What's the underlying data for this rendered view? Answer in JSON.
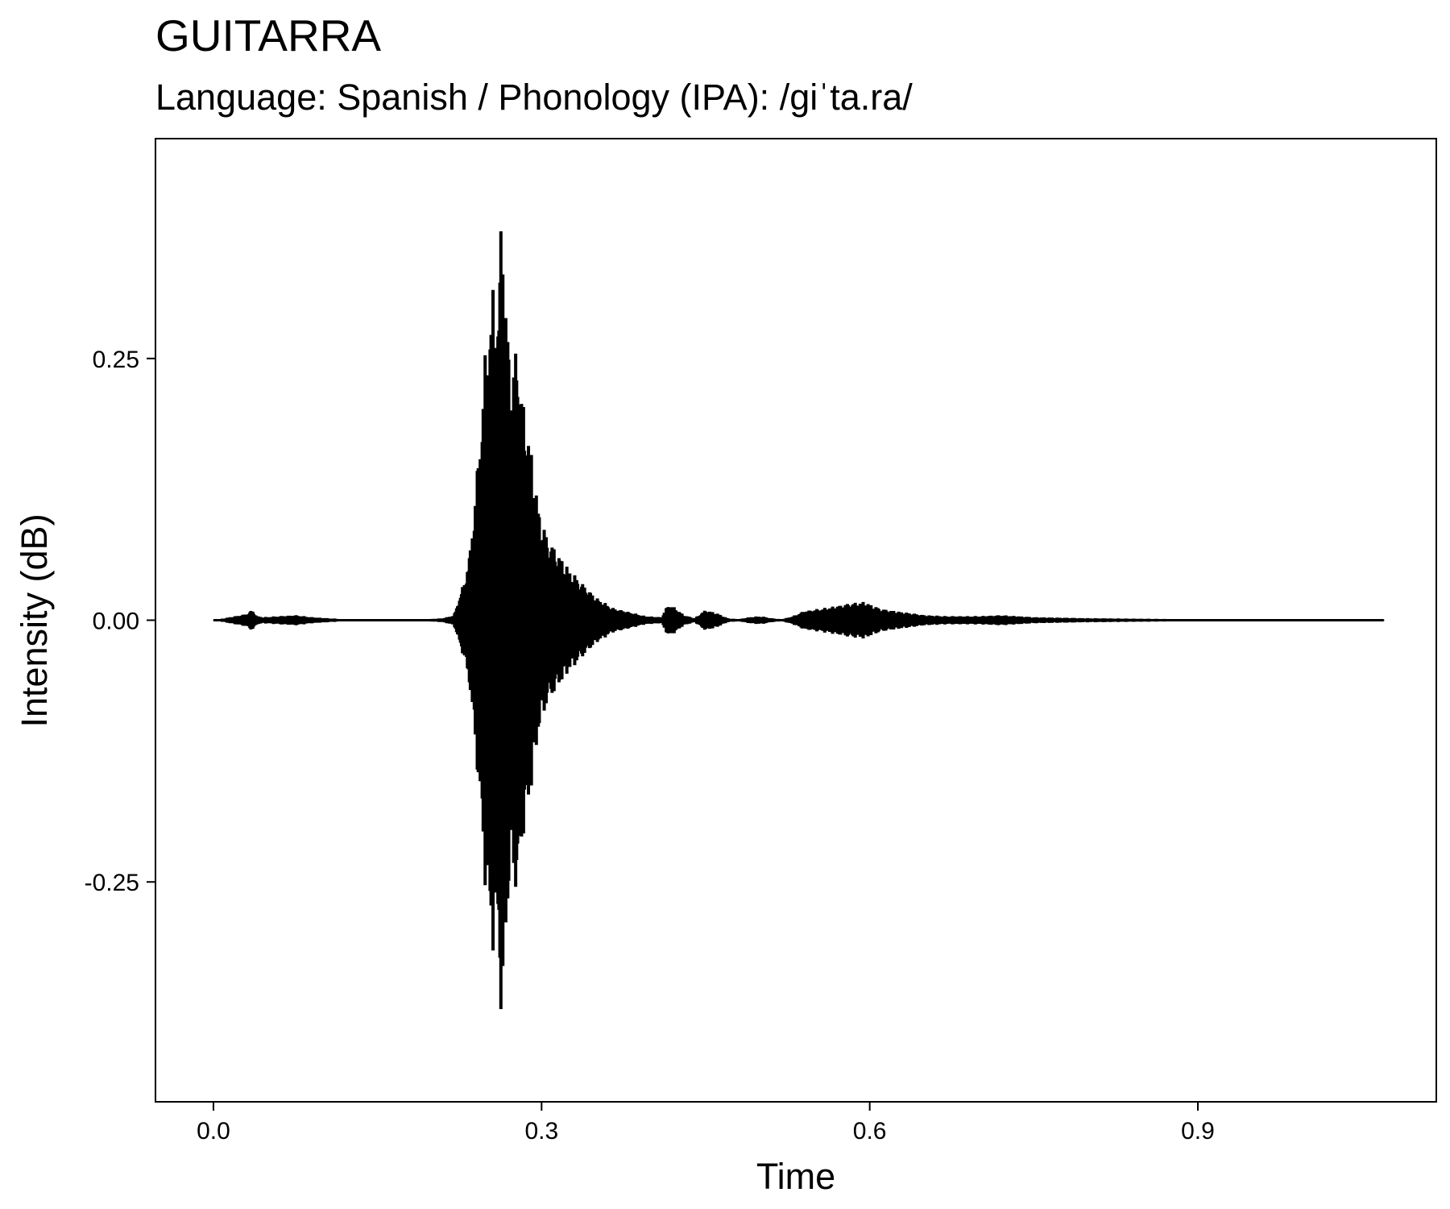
{
  "chart_data": {
    "type": "line",
    "title": "GUITARRA",
    "subtitle": "Language: Spanish / Phonology (IPA): /giˈta.ra/",
    "xlabel": "Time",
    "ylabel": "Intensity (dB)",
    "xlim": [
      -0.053,
      1.118
    ],
    "ylim": [
      -0.46,
      0.46
    ],
    "xticks": [
      0.0,
      0.3,
      0.6,
      0.9
    ],
    "xtick_labels": [
      "0.0",
      "0.3",
      "0.6",
      "0.9"
    ],
    "yticks": [
      0.25,
      0.0,
      -0.25
    ],
    "ytick_labels": [
      "0.25",
      "0.00",
      "-0.25"
    ],
    "grid": false,
    "line_color": "#000000",
    "series": [
      {
        "x": [
          0.0,
          0.03,
          0.033,
          0.035,
          0.04,
          0.045,
          0.06,
          0.075,
          0.09,
          0.105,
          0.12,
          0.15,
          0.18,
          0.21,
          0.22,
          0.23,
          0.235,
          0.24,
          0.245,
          0.25,
          0.255,
          0.26,
          0.264,
          0.268,
          0.273,
          0.278,
          0.283,
          0.29,
          0.297,
          0.305,
          0.315,
          0.325,
          0.335,
          0.35,
          0.365,
          0.38,
          0.395,
          0.41,
          0.416,
          0.422,
          0.43,
          0.44,
          0.45,
          0.46,
          0.47,
          0.48,
          0.49,
          0.5,
          0.51,
          0.52,
          0.53,
          0.54,
          0.56,
          0.58,
          0.595,
          0.61,
          0.63,
          0.65,
          0.67,
          0.7,
          0.72,
          0.75,
          0.8,
          0.85,
          0.9,
          0.95,
          1.0,
          1.05,
          1.07
        ],
        "amplitude": [
          0.0,
          0.006,
          0.008,
          0.01,
          0.004,
          0.003,
          0.004,
          0.005,
          0.003,
          0.002,
          0.001,
          0.0,
          0.0,
          0.002,
          0.005,
          0.04,
          0.07,
          0.13,
          0.2,
          0.28,
          0.32,
          0.3,
          0.42,
          0.29,
          0.24,
          0.27,
          0.21,
          0.17,
          0.11,
          0.08,
          0.065,
          0.05,
          0.038,
          0.022,
          0.012,
          0.008,
          0.004,
          0.003,
          0.016,
          0.012,
          0.005,
          0.002,
          0.01,
          0.007,
          0.002,
          0.001,
          0.003,
          0.004,
          0.002,
          0.001,
          0.004,
          0.009,
          0.012,
          0.016,
          0.018,
          0.011,
          0.008,
          0.005,
          0.004,
          0.004,
          0.005,
          0.003,
          0.002,
          0.0015,
          0.001,
          0.0008,
          0.0005,
          0.0004,
          0.0003
        ]
      }
    ]
  }
}
